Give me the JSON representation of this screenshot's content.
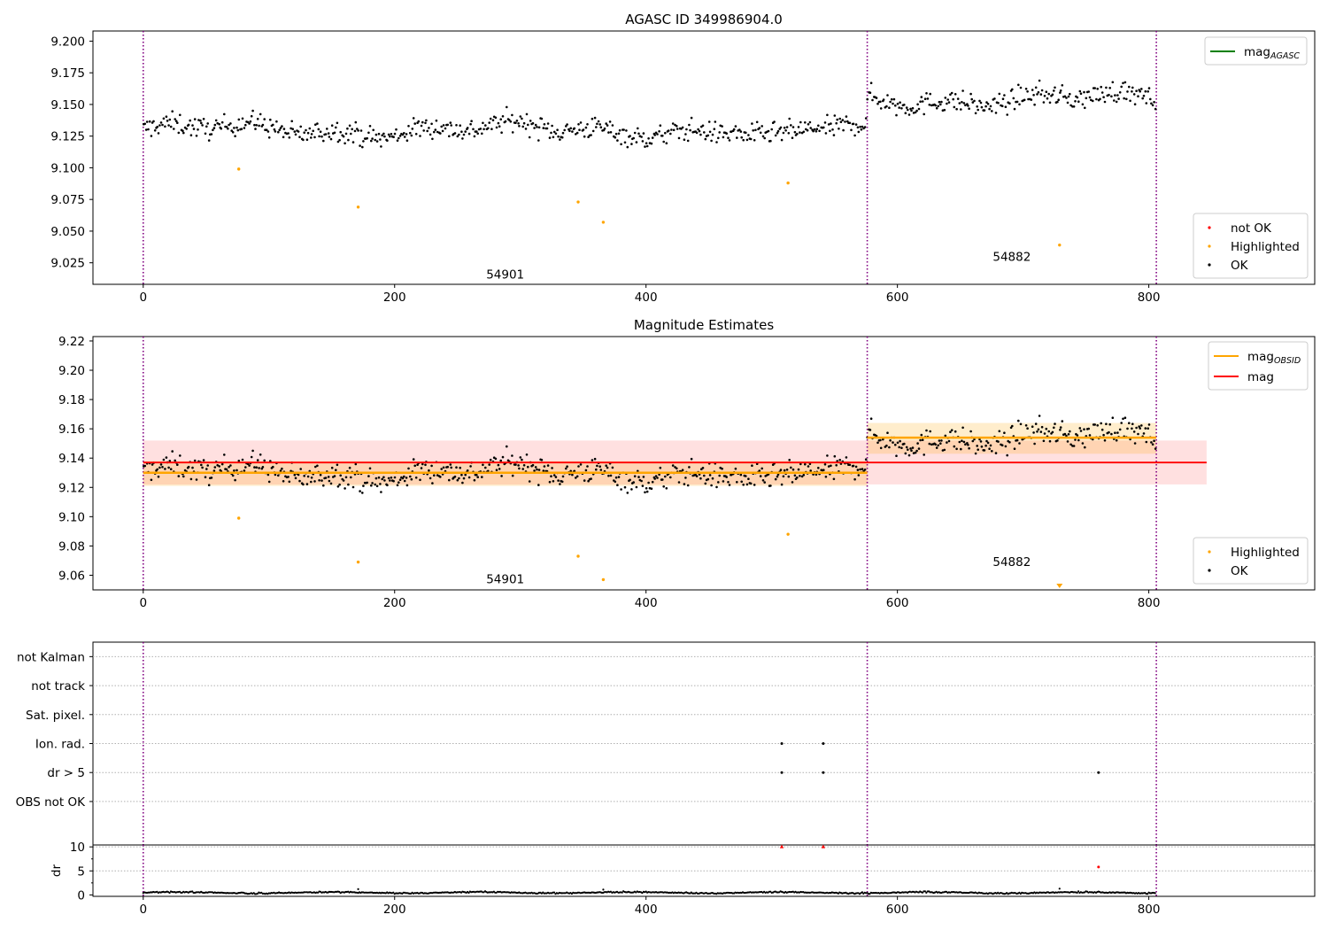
{
  "colors": {
    "ok": "#000000",
    "highlighted": "#ffa500",
    "not_ok": "#ff0000",
    "mag_agasc": "#008000",
    "mag_obsid": "#ffa500",
    "mag": "#ff0000",
    "obs_boundary": "#800080",
    "grid": "#b0b0b0"
  },
  "chart_data": [
    {
      "type": "scatter",
      "title": "AGASC ID 349986904.0",
      "xlim": [
        -40,
        932
      ],
      "ylim": [
        9.008,
        9.208
      ],
      "xticks": [
        0,
        200,
        400,
        600,
        800
      ],
      "yticks": [
        9.025,
        9.05,
        9.075,
        9.1,
        9.125,
        9.15,
        9.175,
        9.2
      ],
      "ytick_labels": [
        "9.025",
        "9.050",
        "9.075",
        "9.100",
        "9.125",
        "9.150",
        "9.175",
        "9.200"
      ],
      "obs_boundaries": [
        0,
        576,
        806
      ],
      "obs_labels": [
        {
          "x": 288,
          "y": 9.016,
          "text": "54901"
        },
        {
          "x": 691,
          "y": 9.03,
          "text": "54882"
        }
      ],
      "segments": [
        {
          "x_start": 0,
          "x_end": 576,
          "center": 9.13,
          "spread": 0.0085,
          "dip_start": 470,
          "dip_end": 530,
          "dip": 0.009
        },
        {
          "x_start": 576,
          "x_end": 806,
          "center": 9.154,
          "spread": 0.0085,
          "dip_start": 0,
          "dip_end": 0,
          "dip": 0
        }
      ],
      "highlighted": [
        {
          "x": 76,
          "y": 9.099
        },
        {
          "x": 171,
          "y": 9.069
        },
        {
          "x": 346,
          "y": 9.073
        },
        {
          "x": 366,
          "y": 9.057
        },
        {
          "x": 513,
          "y": 9.088
        },
        {
          "x": 729,
          "y": 9.039
        }
      ],
      "legend_lines": [
        {
          "label_main": "mag",
          "label_sub": "AGASC",
          "color": "#008000"
        }
      ],
      "legend_points": [
        {
          "label": "not OK",
          "color": "#ff0000"
        },
        {
          "label": "Highlighted",
          "color": "#ffa500"
        },
        {
          "label": "OK",
          "color": "#000000"
        }
      ]
    },
    {
      "type": "scatter",
      "title": "Magnitude Estimates",
      "xlim": [
        -40,
        932
      ],
      "ylim": [
        9.05,
        9.223
      ],
      "xticks": [
        0,
        200,
        400,
        600,
        800
      ],
      "yticks": [
        9.06,
        9.08,
        9.1,
        9.12,
        9.14,
        9.16,
        9.18,
        9.2,
        9.22
      ],
      "ytick_labels": [
        "9.06",
        "9.08",
        "9.10",
        "9.12",
        "9.14",
        "9.16",
        "9.18",
        "9.20",
        "9.22"
      ],
      "obs_boundaries": [
        0,
        576,
        806
      ],
      "obs_labels": [
        {
          "x": 288,
          "y": 9.0575,
          "text": "54901"
        },
        {
          "x": 691,
          "y": 9.0695,
          "text": "54882"
        }
      ],
      "mag": {
        "value": 9.137,
        "band": [
          9.122,
          9.152
        ],
        "x_range": [
          0,
          846
        ]
      },
      "mag_obsid": [
        {
          "x_range": [
            0,
            576
          ],
          "value": 9.13,
          "band": [
            9.121,
            9.138
          ]
        },
        {
          "x_range": [
            576,
            806
          ],
          "value": 9.154,
          "band": [
            9.143,
            9.164
          ]
        }
      ],
      "highlighted": [
        {
          "x": 76,
          "y": 9.099
        },
        {
          "x": 171,
          "y": 9.069
        },
        {
          "x": 346,
          "y": 9.073
        },
        {
          "x": 366,
          "y": 9.057
        },
        {
          "x": 513,
          "y": 9.088
        }
      ],
      "offscale_markers": [
        {
          "x": 729,
          "y": 9.052
        }
      ],
      "legend_lines": [
        {
          "label_main": "mag",
          "label_sub": "OBSID",
          "color": "#ffa500"
        },
        {
          "label_main": "mag",
          "label_sub": "",
          "color": "#ff0000"
        }
      ],
      "legend_points": [
        {
          "label": "Highlighted",
          "color": "#ffa500"
        },
        {
          "label": "OK",
          "color": "#000000"
        }
      ]
    },
    {
      "type": "scatter",
      "title": "",
      "xlim": [
        -40,
        932
      ],
      "ylim": [
        -0.5,
        6.5
      ],
      "xticks": [],
      "yticks": [
        1,
        2,
        3,
        4,
        5,
        6
      ],
      "ytick_labels": [
        "OBS not OK",
        "dr > 5",
        "Ion. rad.",
        "Sat. pixel.",
        "not track",
        "not Kalman"
      ],
      "obs_boundaries": [
        0,
        576,
        806
      ],
      "flags": [
        {
          "x": 508,
          "row": 3
        },
        {
          "x": 541,
          "row": 3
        },
        {
          "x": 508,
          "row": 2
        },
        {
          "x": 541,
          "row": 2
        },
        {
          "x": 760,
          "row": 2
        }
      ]
    },
    {
      "type": "scatter",
      "title": "",
      "xlim": [
        -40,
        932
      ],
      "ylim": [
        -0.3,
        10.4
      ],
      "xticks": [
        0,
        200,
        400,
        600,
        800
      ],
      "yticks": [
        0,
        5,
        10
      ],
      "ytick_labels": [
        "0",
        "5",
        "10"
      ],
      "ylabel": "dr",
      "obs_boundaries": [
        0,
        576,
        806
      ],
      "dr_baseline": 0.4,
      "dr_outliers": [
        {
          "x": 171,
          "y": 1.2,
          "color": "#000000"
        },
        {
          "x": 366,
          "y": 1.1,
          "color": "#000000"
        },
        {
          "x": 729,
          "y": 1.3,
          "color": "#000000"
        }
      ],
      "dr_flagged": [
        {
          "x": 508,
          "y": 10.0,
          "color": "#ff0000",
          "marker": "triangle"
        },
        {
          "x": 541,
          "y": 10.0,
          "color": "#ff0000",
          "marker": "triangle"
        },
        {
          "x": 760,
          "y": 5.8,
          "color": "#ff0000",
          "marker": "dot"
        }
      ]
    }
  ]
}
